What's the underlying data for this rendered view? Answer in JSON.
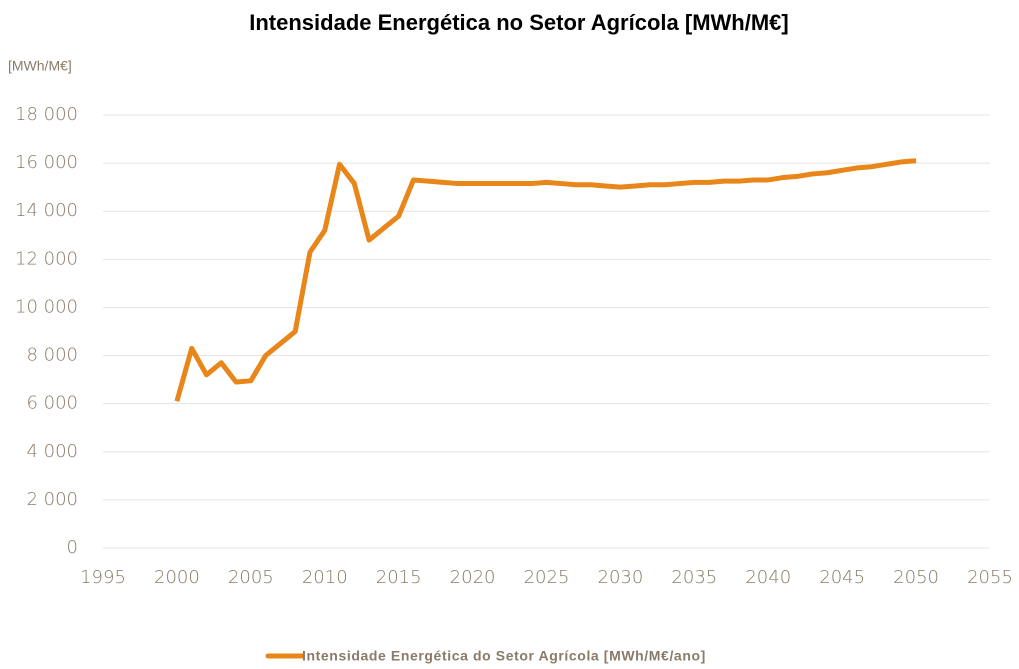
{
  "chart_data": {
    "type": "line",
    "title": "Intensidade Energética no Setor Agrícola [MWh/M€]",
    "y_axis_label": "[MWh/M€]",
    "x": [
      2000,
      2001,
      2002,
      2003,
      2004,
      2005,
      2006,
      2007,
      2008,
      2009,
      2010,
      2011,
      2012,
      2013,
      2014,
      2015,
      2016,
      2017,
      2018,
      2019,
      2020,
      2021,
      2022,
      2023,
      2024,
      2025,
      2026,
      2027,
      2028,
      2029,
      2030,
      2031,
      2032,
      2033,
      2034,
      2035,
      2036,
      2037,
      2038,
      2039,
      2040,
      2041,
      2042,
      2043,
      2044,
      2045,
      2046,
      2047,
      2048,
      2049,
      2050
    ],
    "series": [
      {
        "name": "Intensidade Energética do Setor Agrícola [MWh/M€/ano]",
        "color": "#e8861a",
        "values": [
          6100,
          8300,
          7200,
          7700,
          6900,
          6950,
          8000,
          8500,
          9000,
          12300,
          13200,
          15950,
          15150,
          12800,
          13300,
          13800,
          15300,
          15250,
          15200,
          15150,
          15150,
          15150,
          15150,
          15150,
          15150,
          15200,
          15150,
          15100,
          15100,
          15050,
          15000,
          15050,
          15100,
          15100,
          15150,
          15200,
          15200,
          15250,
          15250,
          15300,
          15300,
          15400,
          15450,
          15550,
          15600,
          15700,
          15800,
          15850,
          15950,
          16050,
          16100
        ]
      }
    ],
    "xlim": [
      1995,
      2055
    ],
    "xticks": [
      1995,
      2000,
      2005,
      2010,
      2015,
      2020,
      2025,
      2030,
      2035,
      2040,
      2045,
      2050,
      2055
    ],
    "ylim": [
      0,
      18000
    ],
    "yticks": [
      0,
      {
        "value": 2000,
        "label": "2 000"
      },
      {
        "value": 4000,
        "label": "4 000"
      },
      {
        "value": 6000,
        "label": "6 000"
      },
      {
        "value": 8000,
        "label": "8 000"
      },
      {
        "value": 10000,
        "label": "10 000"
      },
      {
        "value": 12000,
        "label": "12 000"
      },
      {
        "value": 14000,
        "label": "14 000"
      },
      {
        "value": 16000,
        "label": "16 000"
      },
      {
        "value": 18000,
        "label": "18 000"
      }
    ],
    "grid": true,
    "legend": "bottom"
  }
}
